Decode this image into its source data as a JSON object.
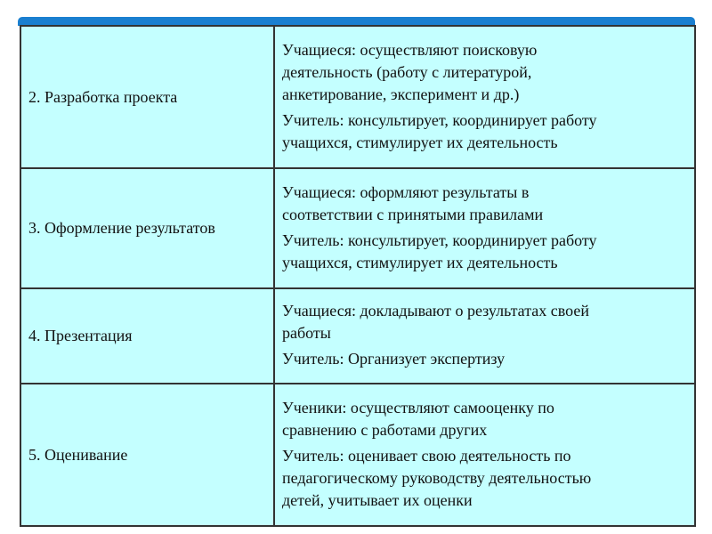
{
  "colors": {
    "header_bar": "#1a7fd0",
    "cell_background": "#c4ffff",
    "border": "#333333"
  },
  "rows": [
    {
      "stage": "2. Разработка проекта",
      "students": "Учащиеся: осуществляют поисковую\nдеятельность (работу с литературой,\nанкетирование, эксперимент и др.)",
      "teacher": "Учитель: консультирует, координирует работу\nучащихся, стимулирует их деятельность"
    },
    {
      "stage": "3. Оформление результатов",
      "students": "Учащиеся: оформляют результаты в\nсоответствии с принятыми правилами",
      "teacher": "Учитель: консультирует, координирует работу\nучащихся, стимулирует их деятельность"
    },
    {
      "stage": "4. Презентация",
      "students": "Учащиеся: докладывают о результатах своей\nработы",
      "teacher": "Учитель: Организует экспертизу"
    },
    {
      "stage": "5. Оценивание",
      "students": "Ученики: осуществляют самооценку по\nсравнению с работами других",
      "teacher": "Учитель: оценивает свою деятельность по\nпедагогическому руководству деятельностью\nдетей, учитывает их оценки"
    }
  ]
}
